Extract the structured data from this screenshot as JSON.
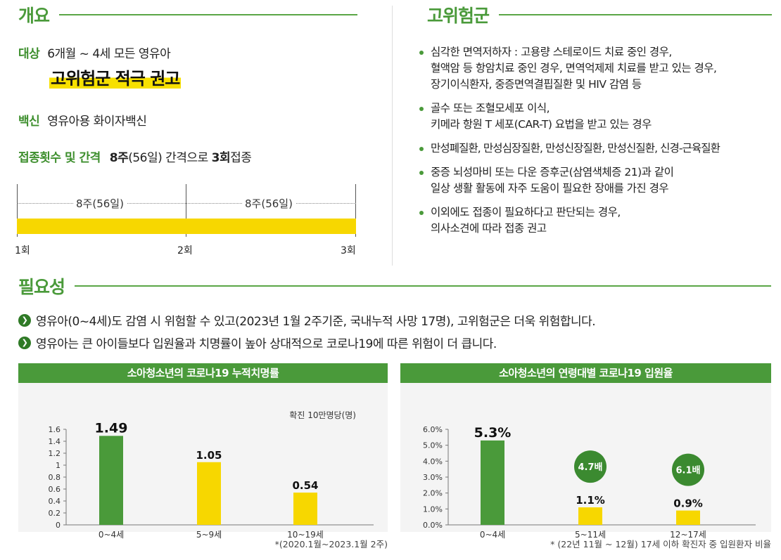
{
  "overview": {
    "title": "개요",
    "target_label": "대상",
    "target_value": "6개월 ~ 4세 모든 영유아",
    "highlight": "고위험군 적극 권고",
    "vaccine_label": "백신",
    "vaccine_value": "영유아용 화이자백신",
    "schedule_label": "접종횟수 및 간격",
    "schedule_weeks": "8주",
    "schedule_mid": "(56일) 간격으로 ",
    "schedule_doses": "3회",
    "schedule_end": "접종",
    "timeline": {
      "interval1": "8주(56일)",
      "interval2": "8주(56일)",
      "dose1": "1회",
      "dose2": "2회",
      "dose3": "3회"
    }
  },
  "high_risk": {
    "title": "고위험군",
    "items": [
      [
        "심각한 면역저하자 : 고용량 스테로이드 치료 중인 경우,",
        "혈액암 등 항암치료 중인 경우, 면역억제제 치료를 받고 있는 경우,",
        "장기이식환자, 중증면역결핍질환 및 HIV 감염 등"
      ],
      [
        "골수 또는 조혈모세포 이식,",
        "키메라 항원 T 세포(CAR-T) 요법을 받고 있는 경우"
      ],
      [
        "만성폐질환, 만성심장질환, 만성신장질환, 만성신질환, 신경-근육질환"
      ],
      [
        "중증 뇌성마비 또는 다운 증후군(삼염색체증 21)과 같이",
        "일상 생활 활동에 자주 도움이 필요한 장애를 가진 경우"
      ],
      [
        "이외에도 접종이 필요하다고 판단되는 경우,",
        "의사소견에 따라 접종 권고"
      ]
    ]
  },
  "necessity": {
    "title": "필요성",
    "line1": "영유아(0~4세)도 감염 시 위험할 수 있고(2023년 1월 2주기준, 국내누적 사망 17명), 고위험군은 더욱 위험합니다.",
    "line2": "영유아는 큰 아이들보다 입원율과 치명률이 높아 상대적으로 코로나19에 따른 위험이 더 큽니다."
  },
  "colors": {
    "green": "#4a9a3a",
    "dark_green": "#3b8a30",
    "yellow": "#f7d700"
  },
  "chart_data": [
    {
      "type": "bar",
      "title": "소아청소년의 코로나19 누적치명률",
      "unit_label": "확진 10만명당(명)",
      "categories": [
        "0~4세",
        "5~9세",
        "10~19세"
      ],
      "values": [
        1.49,
        1.05,
        0.54
      ],
      "value_labels": [
        "1.49",
        "1.05",
        "0.54"
      ],
      "ylim": [
        0,
        1.6
      ],
      "yticks": [
        "0",
        "0.2",
        "0.4",
        "0.6",
        "0.8",
        "1",
        "1.2",
        "1.4",
        "1.6"
      ],
      "ytick_values": [
        0,
        0.2,
        0.4,
        0.6,
        0.8,
        1,
        1.2,
        1.4,
        1.6
      ],
      "bar_colors": [
        "#4a9a3a",
        "#f7d700",
        "#f7d700"
      ],
      "footnote": "*(2020.1월~2023.1월 2주)"
    },
    {
      "type": "bar",
      "title": "소아청소년의 연령대별 코로나19 입원율",
      "categories": [
        "0~4세",
        "5~11세",
        "12~17세"
      ],
      "values": [
        5.3,
        1.1,
        0.9
      ],
      "value_labels": [
        "5.3%",
        "1.1%",
        "0.9%"
      ],
      "ylim": [
        0,
        6
      ],
      "yticks": [
        "0.0%",
        "1.0%",
        "2.0%",
        "3.0%",
        "4.0%",
        "5.0%",
        "6.0%"
      ],
      "ytick_values": [
        0,
        1,
        2,
        3,
        4,
        5,
        6
      ],
      "bar_colors": [
        "#4a9a3a",
        "#f7d700",
        "#f7d700"
      ],
      "ratio_badges": [
        "",
        "4.7배",
        "6.1배"
      ],
      "footnote": "* (22년 11월 ~ 12월) 17세 이하 확진자 중 입원환자 비율"
    }
  ]
}
